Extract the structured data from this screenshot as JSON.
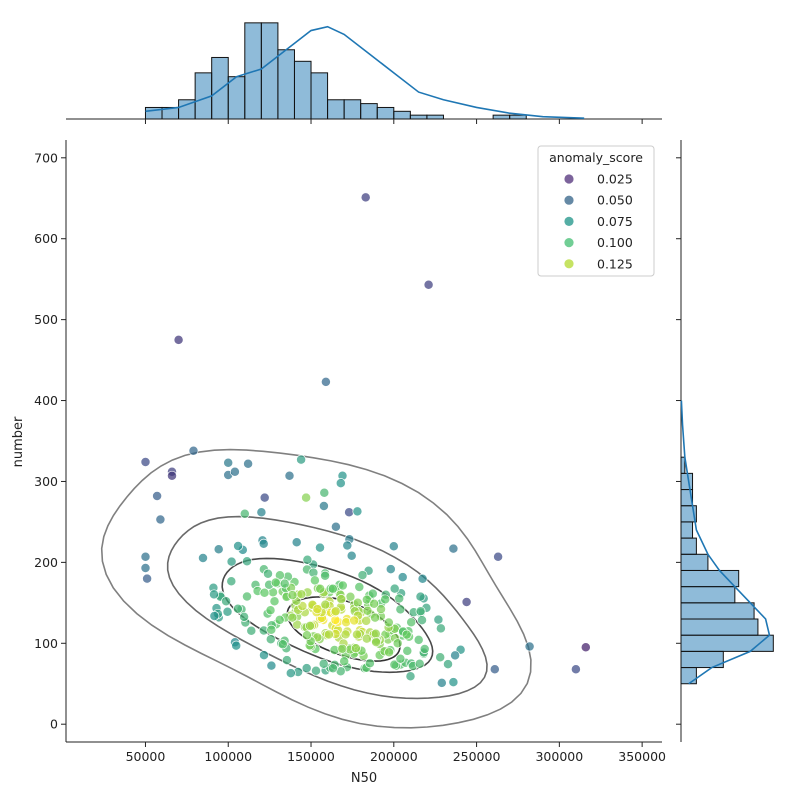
{
  "chart_data": {
    "type": "scatter",
    "title": "",
    "xlabel": "N50",
    "ylabel": "number",
    "xlim": [
      2000,
      362000
    ],
    "ylim": [
      -22,
      722
    ],
    "x_ticks": [
      50000,
      100000,
      150000,
      200000,
      250000,
      300000,
      350000
    ],
    "x_tick_labels": [
      "50000",
      "100000",
      "150000",
      "200000",
      "250000",
      "300000",
      "350000"
    ],
    "y_ticks": [
      0,
      100,
      200,
      300,
      400,
      500,
      600,
      700
    ],
    "y_tick_labels": [
      "0",
      "100",
      "200",
      "300",
      "400",
      "500",
      "600",
      "700"
    ],
    "grid": false,
    "legend": {
      "title": "anomaly_score",
      "placement": "top-right",
      "entries": [
        {
          "label": "0.025",
          "color": "#5b3c82"
        },
        {
          "label": "0.050",
          "color": "#3e6b8e"
        },
        {
          "label": "0.075",
          "color": "#2a9a8e"
        },
        {
          "label": "0.100",
          "color": "#4ec27a"
        },
        {
          "label": "0.125",
          "color": "#b8dc3c"
        }
      ]
    },
    "color_scale": {
      "min": 0.0,
      "max": 0.135,
      "stops": [
        "#46085c",
        "#3b528b",
        "#21908d",
        "#5ec962",
        "#fde725"
      ]
    },
    "outliers": [
      {
        "x": 183000,
        "y": 651,
        "score": 0.025
      },
      {
        "x": 221000,
        "y": 543,
        "score": 0.025
      },
      {
        "x": 70000,
        "y": 475,
        "score": 0.02
      },
      {
        "x": 159000,
        "y": 423,
        "score": 0.045
      },
      {
        "x": 50000,
        "y": 324,
        "score": 0.03
      },
      {
        "x": 66000,
        "y": 312,
        "score": 0.025
      },
      {
        "x": 66000,
        "y": 307,
        "score": 0.02
      },
      {
        "x": 79000,
        "y": 338,
        "score": 0.045
      },
      {
        "x": 316000,
        "y": 95,
        "score": 0.01
      },
      {
        "x": 310000,
        "y": 68,
        "score": 0.03
      },
      {
        "x": 263000,
        "y": 207,
        "score": 0.03
      },
      {
        "x": 282000,
        "y": 96,
        "score": 0.05
      },
      {
        "x": 244000,
        "y": 151,
        "score": 0.025
      },
      {
        "x": 261000,
        "y": 68,
        "score": 0.04
      },
      {
        "x": 50000,
        "y": 207,
        "score": 0.05
      },
      {
        "x": 50000,
        "y": 193,
        "score": 0.05
      },
      {
        "x": 51000,
        "y": 180,
        "score": 0.04
      },
      {
        "x": 57000,
        "y": 282,
        "score": 0.04
      },
      {
        "x": 59000,
        "y": 253,
        "score": 0.045
      },
      {
        "x": 144000,
        "y": 327,
        "score": 0.075
      },
      {
        "x": 100000,
        "y": 323,
        "score": 0.055
      },
      {
        "x": 112000,
        "y": 322,
        "score": 0.05
      },
      {
        "x": 100000,
        "y": 308,
        "score": 0.05
      },
      {
        "x": 104000,
        "y": 312,
        "score": 0.05
      },
      {
        "x": 169000,
        "y": 307,
        "score": 0.07
      },
      {
        "x": 168000,
        "y": 298,
        "score": 0.07
      },
      {
        "x": 137000,
        "y": 307,
        "score": 0.05
      },
      {
        "x": 236000,
        "y": 217,
        "score": 0.05
      },
      {
        "x": 237000,
        "y": 85,
        "score": 0.06
      },
      {
        "x": 236000,
        "y": 52,
        "score": 0.07
      },
      {
        "x": 229000,
        "y": 51,
        "score": 0.06
      },
      {
        "x": 200000,
        "y": 220,
        "score": 0.06
      },
      {
        "x": 173000,
        "y": 262,
        "score": 0.03
      },
      {
        "x": 178000,
        "y": 263,
        "score": 0.07
      },
      {
        "x": 165000,
        "y": 244,
        "score": 0.05
      },
      {
        "x": 122000,
        "y": 280,
        "score": 0.03
      },
      {
        "x": 158000,
        "y": 286,
        "score": 0.09
      },
      {
        "x": 147000,
        "y": 280,
        "score": 0.11
      },
      {
        "x": 120000,
        "y": 262,
        "score": 0.06
      },
      {
        "x": 110000,
        "y": 260,
        "score": 0.09
      }
    ],
    "cluster": {
      "count": 290,
      "center": [
        165000,
        128
      ],
      "spread": [
        35000,
        40
      ],
      "correlation": -0.42,
      "score_range": [
        0.06,
        0.135
      ]
    },
    "marginal_x_hist": {
      "bin_edges": [
        50000,
        60000,
        70000,
        80000,
        90000,
        100000,
        110000,
        120000,
        130000,
        140000,
        150000,
        160000,
        170000,
        180000,
        190000,
        200000,
        210000,
        220000,
        230000,
        240000,
        250000,
        260000,
        270000,
        280000,
        290000,
        300000,
        310000,
        320000
      ],
      "counts": [
        3,
        3,
        5,
        12,
        16,
        11,
        25,
        25,
        18,
        15,
        12,
        5,
        5,
        4,
        3,
        2,
        1,
        1,
        0,
        0,
        0,
        1,
        1,
        0,
        0,
        0,
        0
      ],
      "kde": [
        [
          50000,
          2
        ],
        [
          70000,
          3
        ],
        [
          90000,
          6
        ],
        [
          105000,
          11
        ],
        [
          120000,
          13
        ],
        [
          135000,
          18
        ],
        [
          150000,
          23
        ],
        [
          160000,
          24
        ],
        [
          170000,
          22
        ],
        [
          185000,
          17
        ],
        [
          200000,
          12
        ],
        [
          215000,
          7
        ],
        [
          230000,
          5
        ],
        [
          250000,
          3
        ],
        [
          270000,
          1.5
        ],
        [
          290000,
          0.6
        ],
        [
          315000,
          0.2
        ]
      ]
    },
    "marginal_y_hist": {
      "bin_edges": [
        50,
        70,
        90,
        110,
        130,
        150,
        170,
        190,
        210,
        230,
        250,
        270,
        290,
        310,
        330
      ],
      "counts": [
        4,
        11,
        24,
        20,
        19,
        14,
        15,
        7,
        4,
        3,
        4,
        3,
        3,
        1
      ],
      "kde": [
        [
          50,
          2
        ],
        [
          70,
          8
        ],
        [
          90,
          18
        ],
        [
          110,
          23
        ],
        [
          130,
          22
        ],
        [
          150,
          18
        ],
        [
          170,
          14
        ],
        [
          190,
          10
        ],
        [
          210,
          7
        ],
        [
          240,
          4
        ],
        [
          270,
          3
        ],
        [
          300,
          2
        ],
        [
          330,
          1
        ],
        [
          370,
          0.4
        ],
        [
          400,
          0.1
        ]
      ]
    }
  }
}
